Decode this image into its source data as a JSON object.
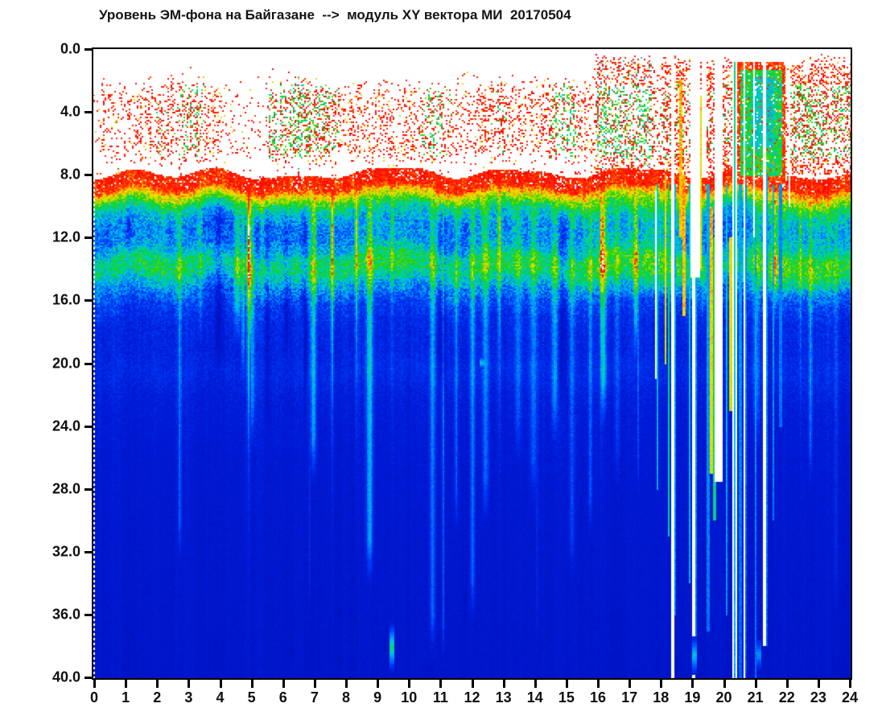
{
  "title": "Уровень ЭМ-фона на Байгазане  -->  модуль XY вектора МИ  20170504",
  "chart_data": {
    "type": "heatmap",
    "title": "Уровень ЭМ-фона на Байгазане  -->  модуль XY вектора МИ  20170504",
    "station": "Байгазан",
    "parameter": "модуль XY вектора МИ",
    "date": "20170504",
    "x": {
      "label": "",
      "min": 0,
      "max": 24,
      "tick_step": 1,
      "ticks": [
        "0",
        "1",
        "2",
        "3",
        "4",
        "5",
        "6",
        "7",
        "8",
        "9",
        "10",
        "11",
        "12",
        "13",
        "14",
        "15",
        "16",
        "17",
        "18",
        "19",
        "20",
        "21",
        "22",
        "23",
        "24"
      ]
    },
    "y": {
      "label": "",
      "min": 0,
      "max": 40,
      "tick_step": 4,
      "inverted": true,
      "ticks": [
        "0.0",
        "4.0",
        "8.0",
        "12.0",
        "16.0",
        "20.0",
        "24.0",
        "28.0",
        "32.0",
        "36.0",
        "40.0"
      ]
    },
    "legend": "none",
    "grid": "off",
    "bands": [
      {
        "y_range": [
          0,
          1.5
        ],
        "appearance": "white / no data with sparse red dots"
      },
      {
        "y_range": [
          1.5,
          7.2
        ],
        "appearance": "patchy red speckle noise with green-yellow cores inside dense patches"
      },
      {
        "y_range": [
          7.2,
          8.0
        ],
        "appearance": "mostly white gap with sparse red dots"
      },
      {
        "y_range": [
          8.0,
          9.4
        ],
        "appearance": "solid red band (saturated), white flecks"
      },
      {
        "y_range": [
          9.4,
          13.0
        ],
        "appearance": "noisy cyan-blue mixture, darker blue core near 11-12"
      },
      {
        "y_range": [
          13.0,
          14.5
        ],
        "appearance": "green band with yellow flecks"
      },
      {
        "y_range": [
          14.5,
          16.5
        ],
        "appearance": "cyan fading to blue"
      },
      {
        "y_range": [
          16.5,
          40.0
        ],
        "appearance": "deep blue, slowly darkening, vertical lighter streaks; faint lighter band near y=20"
      }
    ],
    "events": [
      {
        "t_range": [
          16.05,
          17.75
        ],
        "note": "dense red speckle patch reaching top with green core"
      },
      {
        "t_range": [
          17.8,
          20.35
        ],
        "note": "disturbed interval: white data-gap columns and intense full-depth red/green/cyan streaks"
      },
      {
        "t_range": [
          20.4,
          21.95
        ],
        "note": "strong event: solid green blob with cyan core and red fringe at y 1-8.5, cut by white gap columns"
      },
      {
        "t_range": [
          22.1,
          23.25
        ],
        "note": "dense red speckle patch with green core"
      },
      {
        "t_range": [
          23.35,
          24.0
        ],
        "note": "red speckle patch with green core at right edge"
      }
    ],
    "render": {
      "seed": 1305,
      "cell": 2,
      "colormap": [
        [
          0.0,
          "#000896"
        ],
        [
          0.1,
          "#000ca8"
        ],
        [
          0.2,
          "#0012c0"
        ],
        [
          0.3,
          "#001cd8"
        ],
        [
          0.38,
          "#0038f4"
        ],
        [
          0.46,
          "#0078ff"
        ],
        [
          0.53,
          "#00b4f0"
        ],
        [
          0.585,
          "#00d2b4"
        ],
        [
          0.645,
          "#00d25a"
        ],
        [
          0.72,
          "#32d200"
        ],
        [
          0.8,
          "#b4dc00"
        ],
        [
          0.87,
          "#ffdc00"
        ],
        [
          0.935,
          "#ff3000"
        ],
        [
          1.0,
          "#ff0000"
        ]
      ],
      "white_above": 1.003,
      "profile": [
        [
          7.9,
          0.96
        ],
        [
          8.9,
          0.95
        ],
        [
          9.35,
          0.85
        ],
        [
          9.95,
          0.67
        ],
        [
          10.55,
          0.55
        ],
        [
          11.3,
          0.475
        ],
        [
          12.3,
          0.485
        ],
        [
          12.95,
          0.55
        ],
        [
          13.35,
          0.635
        ],
        [
          14.15,
          0.65
        ],
        [
          14.75,
          0.565
        ],
        [
          15.45,
          0.465
        ],
        [
          16.25,
          0.385
        ],
        [
          17.5,
          0.335
        ],
        [
          19.4,
          0.318
        ],
        [
          20.6,
          0.332
        ],
        [
          22.5,
          0.3
        ],
        [
          26,
          0.278
        ],
        [
          32,
          0.258
        ],
        [
          40,
          0.238
        ]
      ],
      "amp_profile": [
        [
          8,
          0.045
        ],
        [
          9.2,
          0.05
        ],
        [
          9.6,
          0.1
        ],
        [
          15.6,
          0.1
        ],
        [
          16.3,
          0.065
        ],
        [
          17.5,
          0.042
        ],
        [
          20,
          0.034
        ],
        [
          24,
          0.028
        ],
        [
          32,
          0.022
        ],
        [
          40,
          0.02
        ]
      ],
      "speckle": {
        "density_profile": [
          [
            0.8,
            0
          ],
          [
            1.6,
            0.1
          ],
          [
            2.3,
            0.45
          ],
          [
            2.9,
            0.78
          ],
          [
            3.4,
            0.92
          ],
          [
            6.3,
            0.92
          ],
          [
            6.9,
            0.38
          ],
          [
            7.3,
            0.16
          ],
          [
            7.9,
            0.12
          ]
        ],
        "forced_patches": [
          [
            5.55,
            7.75,
            0.95
          ],
          [
            15.95,
            17.7,
            1.0
          ],
          [
            17.8,
            20.33,
            0.8
          ],
          [
            22.08,
            23.25,
            0.95
          ],
          [
            23.35,
            24,
            0.92
          ]
        ],
        "sparse_patches": [
          [
            0,
            0.18,
            0.3
          ],
          [
            4.55,
            5.45,
            0.25
          ]
        ],
        "top_zones": [
          [
            15.95,
            17.7
          ],
          [
            18.05,
            20.33
          ],
          [
            22.08,
            23.25
          ],
          [
            23.4,
            24
          ]
        ]
      },
      "mid_zones": [
        [
          17.25,
          18.55,
          0.085
        ],
        [
          20.4,
          21.95,
          0.05
        ],
        [
          10.2,
          12.0,
          -0.05
        ],
        [
          14.6,
          15.4,
          -0.02
        ]
      ],
      "drips": [
        [
          0.95,
          0.45,
          13.5,
          0
        ],
        [
          2.2,
          0.38,
          13,
          0
        ],
        [
          3.3,
          0.42,
          13.5,
          0
        ],
        [
          4.9,
          0.95,
          23,
          1
        ],
        [
          5.32,
          0.5,
          15,
          0
        ],
        [
          6.15,
          0.45,
          14,
          0
        ],
        [
          7.0,
          0.4,
          13.5,
          0
        ],
        [
          7.55,
          0.8,
          21,
          1
        ],
        [
          8.32,
          0.75,
          19,
          1
        ],
        [
          9.0,
          0.55,
          15,
          0
        ],
        [
          9.45,
          0.5,
          14,
          1
        ],
        [
          10.35,
          0.42,
          13.5,
          0
        ],
        [
          10.9,
          0.55,
          16,
          0
        ],
        [
          11.6,
          0.4,
          13,
          0
        ],
        [
          12.3,
          0.45,
          14,
          0
        ],
        [
          12.85,
          0.7,
          18,
          1
        ],
        [
          13.3,
          0.5,
          14.5,
          0
        ],
        [
          14.5,
          0.4,
          13.5,
          0
        ],
        [
          15.55,
          0.5,
          14.5,
          0
        ],
        [
          16.1,
          0.65,
          17,
          1
        ],
        [
          17.0,
          0.5,
          14.5,
          0
        ],
        [
          22.4,
          0.55,
          16,
          1
        ],
        [
          23.3,
          0.5,
          15,
          0
        ],
        [
          23.85,
          0.45,
          14,
          0
        ]
      ],
      "gaps": [
        [
          17.8,
          17.845,
          9,
          21
        ],
        [
          18.31,
          18.38,
          0,
          40
        ],
        [
          18.95,
          19.22,
          0,
          14.5
        ],
        [
          19.0,
          19.06,
          0,
          40
        ],
        [
          19.3,
          19.42,
          0,
          8
        ],
        [
          19.72,
          19.95,
          0,
          27.5
        ],
        [
          20.24,
          20.31,
          0,
          40
        ],
        [
          20.35,
          20.41,
          0,
          40
        ],
        [
          20.6,
          20.66,
          0,
          40
        ],
        [
          20.9,
          20.96,
          0,
          12
        ],
        [
          21.25,
          21.31,
          0,
          38
        ],
        [
          22.03,
          22.08,
          0,
          10
        ]
      ],
      "event_streaks": [
        [
          17.86,
          0.016,
          0.6,
          8.6,
          28
        ],
        [
          18.12,
          0.028,
          0.9,
          8,
          20
        ],
        [
          18.22,
          0.022,
          0.68,
          8.6,
          31
        ],
        [
          18.42,
          0.022,
          0.56,
          8.6,
          36
        ],
        [
          18.6,
          0.026,
          0.9,
          2,
          12
        ],
        [
          18.7,
          0.03,
          0.92,
          8,
          17
        ],
        [
          18.88,
          0.022,
          0.62,
          8.6,
          34
        ],
        [
          19.08,
          0.02,
          0.56,
          0.8,
          38
        ],
        [
          19.26,
          0.022,
          0.88,
          3,
          14
        ],
        [
          19.47,
          0.025,
          0.56,
          8.6,
          37
        ],
        [
          19.6,
          0.03,
          0.92,
          10,
          27
        ],
        [
          19.69,
          0.02,
          0.7,
          12,
          30
        ],
        [
          20.05,
          0.02,
          0.6,
          8.6,
          36
        ],
        [
          20.2,
          0.025,
          0.9,
          12,
          23
        ],
        [
          20.33,
          0.016,
          0.62,
          0.8,
          40
        ],
        [
          20.5,
          0.018,
          0.55,
          8.6,
          40
        ],
        [
          20.68,
          0.018,
          0.52,
          8.6,
          40
        ],
        [
          20.98,
          0.018,
          0.56,
          10,
          40
        ],
        [
          21.32,
          0.018,
          0.54,
          8,
          38
        ],
        [
          21.55,
          0.018,
          0.56,
          8.6,
          30
        ],
        [
          21.78,
          0.018,
          0.52,
          8.6,
          24
        ]
      ],
      "blob": {
        "t0": 20.4,
        "t1": 21.95,
        "d0": 0.8,
        "d1": 8.6,
        "core_v": 0.66,
        "cyan_core": {
          "t0": 20.85,
          "t1": 21.55,
          "d0": 1.8,
          "d1": 6.2,
          "v": 0.575
        },
        "fringe_v": 0.9
      },
      "spots": [
        [
          9.45,
          36.5,
          39.6,
          0.63
        ],
        [
          12.3,
          19.5,
          20.4,
          0.58
        ],
        [
          19.05,
          37.3,
          39.8,
          0.56
        ],
        [
          21.1,
          37.5,
          39.5,
          0.5
        ]
      ],
      "n_bright_streaks": 30,
      "n_dark_streaks": 16,
      "dotted_left_line": true
    }
  }
}
